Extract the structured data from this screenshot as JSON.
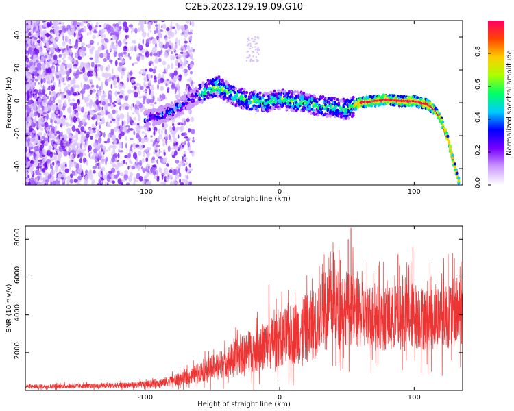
{
  "title": "C2E5.2023.129.19.09.G10",
  "chart_data": [
    {
      "type": "heatmap",
      "name": "spectrogram",
      "xlabel": "Height of straight line (km)",
      "ylabel": "Frequency (Hz)",
      "xlim": [
        -189,
        136
      ],
      "ylim": [
        -50,
        50
      ],
      "xticks": [
        -100,
        0,
        100
      ],
      "yticks": [
        -40,
        -20,
        0,
        20,
        40
      ],
      "colorbar": {
        "label": "Normalized spectral amplitude",
        "range": [
          0,
          1
        ],
        "ticks": [
          0.0,
          0.2,
          0.4,
          0.6,
          0.8
        ],
        "tick_labels": [
          "0.0",
          "0.2",
          "0.4",
          "0.6",
          "0.8"
        ],
        "colors": [
          "#ffffff",
          "#cc99ff",
          "#7700ff",
          "#0000ff",
          "#00ccff",
          "#00ff66",
          "#aaff00",
          "#ffcc00",
          "#ff4400",
          "#ff0066"
        ]
      },
      "ridge": {
        "x": [
          -100,
          -90,
          -80,
          -70,
          -60,
          -50,
          -45,
          -40,
          -30,
          -20,
          -10,
          0,
          10,
          20,
          30,
          40,
          50,
          55,
          60,
          70,
          80,
          90,
          100,
          105,
          110,
          115,
          120,
          125,
          130,
          134
        ],
        "freq": [
          -10,
          -8,
          -5,
          0,
          5,
          9,
          10,
          7,
          3,
          1,
          0,
          2,
          1,
          0,
          -2,
          -3,
          -4,
          -2,
          0,
          1,
          2,
          1,
          1,
          0,
          -1,
          -4,
          -10,
          -22,
          -38,
          -50
        ]
      }
    },
    {
      "type": "line",
      "name": "snr",
      "xlabel": "Height of straight line (km)",
      "ylabel": "SNR (10 * v/v)",
      "xlim": [
        -189,
        136
      ],
      "ylim": [
        0,
        8700
      ],
      "xticks": [
        -100,
        0,
        100
      ],
      "yticks": [
        2000,
        4000,
        6000,
        8000
      ],
      "color": "#ee3333",
      "envelope": {
        "x": [
          -189,
          -150,
          -120,
          -100,
          -85,
          -70,
          -60,
          -50,
          -40,
          -30,
          -20,
          -10,
          0,
          10,
          20,
          28,
          32,
          40,
          50,
          60,
          70,
          80,
          90,
          100,
          110,
          120,
          130,
          136
        ],
        "mean": [
          200,
          230,
          260,
          320,
          450,
          650,
          950,
          1200,
          1500,
          1800,
          2100,
          2400,
          2700,
          3000,
          3300,
          3600,
          4400,
          4500,
          4400,
          4000,
          3900,
          3800,
          3900,
          4000,
          3700,
          4000,
          4100,
          4300
        ]
      },
      "spikes": [
        {
          "x": 53,
          "y": 8600
        },
        {
          "x": 51,
          "y": 8000
        },
        {
          "x": 40,
          "y": 7300
        },
        {
          "x": 45,
          "y": 6900
        },
        {
          "x": 88,
          "y": 7200
        },
        {
          "x": 99,
          "y": 7600
        },
        {
          "x": 70,
          "y": 6200
        },
        {
          "x": -8,
          "y": 5600
        },
        {
          "x": 110,
          "y": 5800
        },
        {
          "x": 131,
          "y": 5800
        }
      ]
    }
  ]
}
